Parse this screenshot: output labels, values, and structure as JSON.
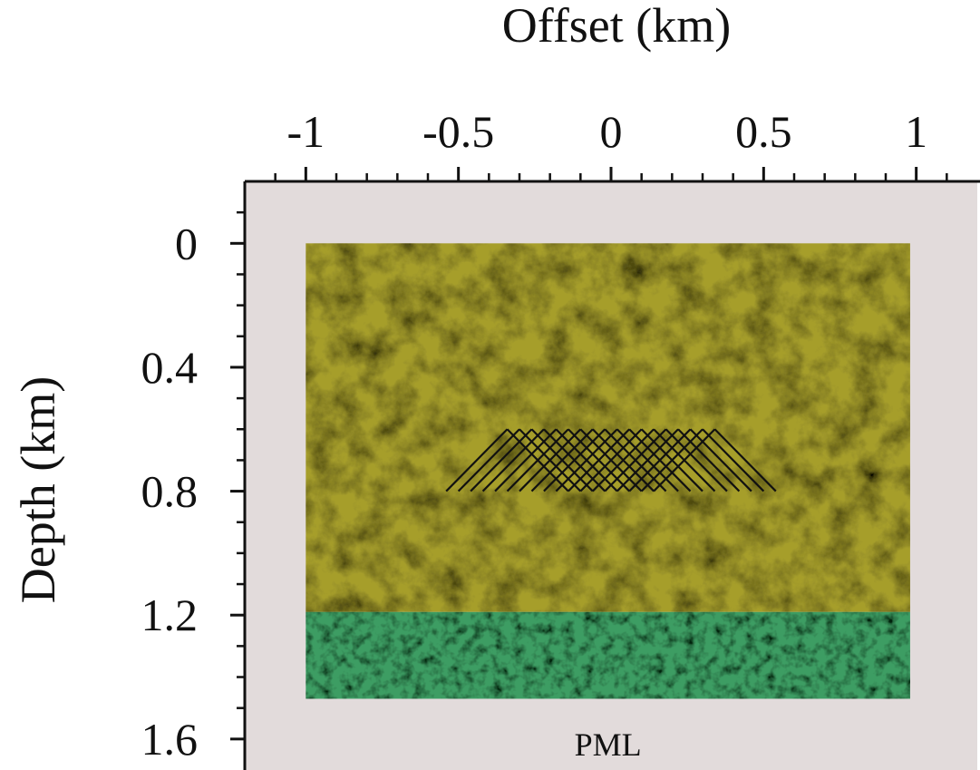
{
  "chart_data": {
    "type": "model",
    "xlabel": "Offset (km)",
    "ylabel": "Depth (km)",
    "annotation": "PML",
    "xlim": [
      -1.2,
      1.2
    ],
    "ylim": [
      -0.2,
      1.7
    ],
    "xticks": [
      -1,
      -0.5,
      0,
      0.5,
      1
    ],
    "yticks": [
      0,
      0.4,
      0.8,
      1.2,
      1.6
    ],
    "xticks_minor": [
      -1.1,
      -0.9,
      -0.8,
      -0.7,
      -0.6,
      -0.4,
      -0.3,
      -0.2,
      -0.1,
      0.1,
      0.2,
      0.3,
      0.4,
      0.6,
      0.7,
      0.8,
      0.9,
      1.1
    ],
    "yticks_minor": [
      -0.1,
      0.1,
      0.2,
      0.3,
      0.5,
      0.6,
      0.7,
      0.9,
      1.0,
      1.1,
      1.3,
      1.4,
      1.5
    ],
    "pml_color": "#e2dbdb",
    "layers": [
      {
        "x": [
          -1,
          0.98
        ],
        "depth": [
          0,
          1.19
        ],
        "color": "#a69e2c"
      },
      {
        "x": [
          -1,
          0.98
        ],
        "depth": [
          1.19,
          1.47
        ],
        "color": "#3d9d63"
      }
    ],
    "rays": {
      "top_depth": 0.6,
      "bottom_depth": 0.8,
      "color": "#111111",
      "segments": [
        [
          -0.54,
          -0.34
        ],
        [
          -0.5,
          -0.3
        ],
        [
          -0.46,
          -0.26
        ],
        [
          -0.42,
          -0.22
        ],
        [
          -0.38,
          -0.18
        ],
        [
          -0.34,
          -0.14
        ],
        [
          -0.3,
          -0.1
        ],
        [
          -0.26,
          -0.06
        ],
        [
          -0.22,
          -0.02
        ],
        [
          -0.18,
          0.02
        ],
        [
          -0.14,
          0.06
        ],
        [
          -0.1,
          0.1
        ],
        [
          -0.06,
          0.14
        ],
        [
          -0.02,
          0.18
        ],
        [
          0.02,
          0.22
        ],
        [
          0.06,
          0.26
        ],
        [
          0.1,
          0.3
        ],
        [
          0.14,
          0.34
        ],
        [
          -0.14,
          -0.34
        ],
        [
          -0.1,
          -0.3
        ],
        [
          -0.06,
          -0.26
        ],
        [
          -0.02,
          -0.22
        ],
        [
          0.02,
          -0.18
        ],
        [
          0.06,
          -0.14
        ],
        [
          0.1,
          -0.1
        ],
        [
          0.14,
          -0.06
        ],
        [
          0.18,
          -0.02
        ],
        [
          0.22,
          0.02
        ],
        [
          0.26,
          0.06
        ],
        [
          0.3,
          0.1
        ],
        [
          0.34,
          0.14
        ],
        [
          0.38,
          0.18
        ],
        [
          0.42,
          0.22
        ],
        [
          0.46,
          0.26
        ],
        [
          0.5,
          0.3
        ],
        [
          0.54,
          0.34
        ]
      ]
    }
  }
}
